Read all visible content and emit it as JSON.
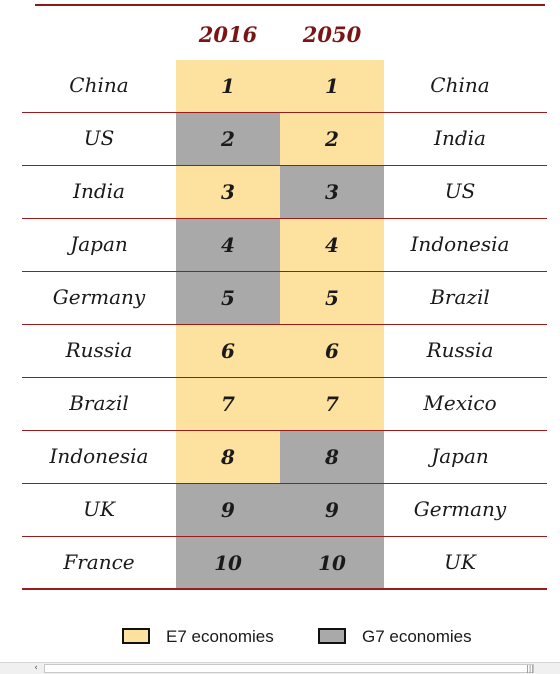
{
  "header": {
    "year_left": "2016",
    "year_right": "2050"
  },
  "rows": [
    {
      "left_country": "China",
      "rank_2016": "1",
      "type_2016": "E7",
      "rank_2050": "1",
      "type_2050": "E7",
      "right_country": "China"
    },
    {
      "left_country": "US",
      "rank_2016": "2",
      "type_2016": "G7",
      "rank_2050": "2",
      "type_2050": "E7",
      "right_country": "India"
    },
    {
      "left_country": "India",
      "rank_2016": "3",
      "type_2016": "E7",
      "rank_2050": "3",
      "type_2050": "G7",
      "right_country": "US"
    },
    {
      "left_country": "Japan",
      "rank_2016": "4",
      "type_2016": "G7",
      "rank_2050": "4",
      "type_2050": "E7",
      "right_country": "Indonesia"
    },
    {
      "left_country": "Germany",
      "rank_2016": "5",
      "type_2016": "G7",
      "rank_2050": "5",
      "type_2050": "E7",
      "right_country": "Brazil"
    },
    {
      "left_country": "Russia",
      "rank_2016": "6",
      "type_2016": "E7",
      "rank_2050": "6",
      "type_2050": "E7",
      "right_country": "Russia"
    },
    {
      "left_country": "Brazil",
      "rank_2016": "7",
      "type_2016": "E7",
      "rank_2050": "7",
      "type_2050": "E7",
      "right_country": "Mexico"
    },
    {
      "left_country": "Indonesia",
      "rank_2016": "8",
      "type_2016": "E7",
      "rank_2050": "8",
      "type_2050": "G7",
      "right_country": "Japan"
    },
    {
      "left_country": "UK",
      "rank_2016": "9",
      "type_2016": "G7",
      "rank_2050": "9",
      "type_2050": "G7",
      "right_country": "Germany"
    },
    {
      "left_country": "France",
      "rank_2016": "10",
      "type_2016": "G7",
      "rank_2050": "10",
      "type_2050": "G7",
      "right_country": "UK"
    }
  ],
  "legend": {
    "e7_label": "E7 economies",
    "g7_label": "G7 economies"
  },
  "colors": {
    "e7": "#fde29f",
    "g7": "#a9a9a9",
    "rule": "#9b1c1c",
    "year_text": "#7a1515"
  },
  "scrollbar": {
    "left_arrow_icon": "chevron-left-icon",
    "grip_icon": "grip-icon"
  }
}
